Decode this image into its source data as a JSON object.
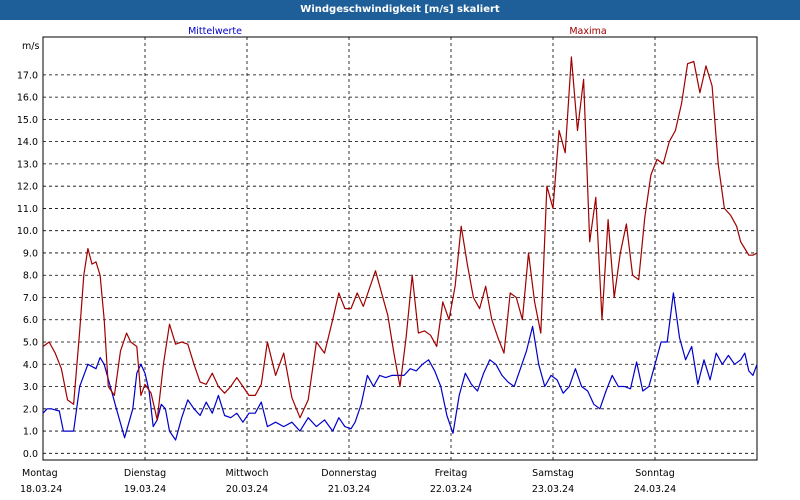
{
  "title": "Windgeschwindigkeit [m/s] skaliert",
  "chart_data": {
    "type": "line",
    "ylabel": "m/s",
    "ylim": [
      -0.3,
      18.7
    ],
    "yticks": [
      0.0,
      1.0,
      2.0,
      3.0,
      4.0,
      5.0,
      6.0,
      7.0,
      8.0,
      9.0,
      10.0,
      11.0,
      12.0,
      13.0,
      14.0,
      15.0,
      16.0,
      17.0
    ],
    "xlim": [
      0,
      7
    ],
    "days": [
      {
        "name": "Montag",
        "date": "18.03.24"
      },
      {
        "name": "Dienstag",
        "date": "19.03.24"
      },
      {
        "name": "Mittwoch",
        "date": "20.03.24"
      },
      {
        "name": "Donnerstag",
        "date": "21.03.24"
      },
      {
        "name": "Freitag",
        "date": "22.03.24"
      },
      {
        "name": "Samstag",
        "date": "23.03.24"
      },
      {
        "name": "Sonntag",
        "date": "24.03.24"
      }
    ],
    "series": [
      {
        "name": "Mittelwerte",
        "color": "#0000cc",
        "x": [
          0,
          0.04,
          0.08,
          0.16,
          0.2,
          0.24,
          0.3,
          0.36,
          0.44,
          0.52,
          0.56,
          0.6,
          0.66,
          0.72,
          0.8,
          0.88,
          0.92,
          0.96,
          1.0,
          1.04,
          1.08,
          1.12,
          1.16,
          1.2,
          1.24,
          1.3,
          1.36,
          1.42,
          1.48,
          1.54,
          1.6,
          1.66,
          1.72,
          1.78,
          1.84,
          1.9,
          1.96,
          2.02,
          2.08,
          2.14,
          2.2,
          2.28,
          2.36,
          2.44,
          2.52,
          2.6,
          2.68,
          2.76,
          2.84,
          2.9,
          2.96,
          3.02,
          3.06,
          3.12,
          3.18,
          3.24,
          3.3,
          3.36,
          3.42,
          3.48,
          3.54,
          3.6,
          3.66,
          3.72,
          3.78,
          3.84,
          3.9,
          3.96,
          4.02,
          4.08,
          4.14,
          4.2,
          4.26,
          4.32,
          4.38,
          4.44,
          4.5,
          4.56,
          4.62,
          4.68,
          4.74,
          4.8,
          4.86,
          4.92,
          4.98,
          5.04,
          5.1,
          5.16,
          5.22,
          5.28,
          5.34,
          5.4,
          5.46,
          5.52,
          5.58,
          5.64,
          5.7,
          5.76,
          5.82,
          5.88,
          5.94,
          6.0,
          6.06,
          6.12,
          6.18,
          6.24,
          6.3,
          6.36,
          6.42,
          6.48,
          6.54,
          6.6,
          6.66,
          6.72,
          6.78,
          6.84,
          6.88,
          6.92,
          6.96,
          7.0
        ],
        "y": [
          1.8,
          2.0,
          2.0,
          1.9,
          1.0,
          1.0,
          1.0,
          3.0,
          4.0,
          3.8,
          4.3,
          4.0,
          3.0,
          2.0,
          0.7,
          2.0,
          3.6,
          4.0,
          3.6,
          2.8,
          1.2,
          1.5,
          2.2,
          2.0,
          1.0,
          0.6,
          1.6,
          2.4,
          2.0,
          1.7,
          2.3,
          1.8,
          2.6,
          1.7,
          1.6,
          1.8,
          1.4,
          1.8,
          1.8,
          2.3,
          1.2,
          1.4,
          1.2,
          1.4,
          1.0,
          1.6,
          1.2,
          1.5,
          1.0,
          1.6,
          1.2,
          1.1,
          1.4,
          2.2,
          3.5,
          3.0,
          3.5,
          3.4,
          3.5,
          3.5,
          3.5,
          3.8,
          3.7,
          4.0,
          4.2,
          3.7,
          3.0,
          1.7,
          0.9,
          2.6,
          3.6,
          3.1,
          2.8,
          3.6,
          4.2,
          4.0,
          3.5,
          3.2,
          3.0,
          3.8,
          4.6,
          5.7,
          4.0,
          3.0,
          3.5,
          3.3,
          2.7,
          3.0,
          3.8,
          3.0,
          2.8,
          2.2,
          2.0,
          2.8,
          3.5,
          3.0,
          3.0,
          2.9,
          4.1,
          2.8,
          3.0,
          4.0,
          5.0,
          5.0,
          7.2,
          5.2,
          4.2,
          4.8,
          3.1,
          4.2,
          3.3,
          4.5,
          4.0,
          4.4,
          4.0,
          4.2,
          4.5,
          3.7,
          3.5,
          4.0
        ],
        "note": "x in days from 18.03.24 00:00"
      },
      {
        "name": "Maxima",
        "color": "#a00000",
        "x": [
          0,
          0.06,
          0.12,
          0.18,
          0.24,
          0.3,
          0.36,
          0.4,
          0.44,
          0.48,
          0.52,
          0.56,
          0.6,
          0.64,
          0.7,
          0.76,
          0.82,
          0.86,
          0.92,
          0.96,
          1.0,
          1.06,
          1.12,
          1.18,
          1.24,
          1.3,
          1.36,
          1.42,
          1.48,
          1.54,
          1.6,
          1.66,
          1.72,
          1.78,
          1.84,
          1.9,
          1.96,
          2.02,
          2.08,
          2.14,
          2.2,
          2.28,
          2.36,
          2.44,
          2.52,
          2.6,
          2.68,
          2.76,
          2.84,
          2.9,
          2.96,
          3.02,
          3.08,
          3.14,
          3.2,
          3.26,
          3.32,
          3.38,
          3.44,
          3.5,
          3.56,
          3.62,
          3.68,
          3.74,
          3.8,
          3.86,
          3.92,
          3.98,
          4.04,
          4.1,
          4.16,
          4.22,
          4.28,
          4.34,
          4.4,
          4.46,
          4.52,
          4.58,
          4.64,
          4.7,
          4.76,
          4.82,
          4.88,
          4.94,
          5.0,
          5.06,
          5.12,
          5.18,
          5.24,
          5.3,
          5.36,
          5.42,
          5.48,
          5.54,
          5.6,
          5.66,
          5.72,
          5.78,
          5.84,
          5.9,
          5.96,
          6.02,
          6.08,
          6.14,
          6.2,
          6.26,
          6.32,
          6.38,
          6.44,
          6.5,
          6.56,
          6.62,
          6.68,
          6.74,
          6.8,
          6.84,
          6.88,
          6.92,
          6.96,
          7.0
        ],
        "y": [
          4.8,
          5.0,
          4.5,
          3.8,
          2.4,
          2.2,
          5.5,
          8.0,
          9.2,
          8.5,
          8.6,
          8.0,
          6.0,
          3.0,
          2.6,
          4.6,
          5.4,
          5.0,
          4.8,
          2.6,
          3.1,
          2.7,
          1.5,
          4.0,
          5.8,
          4.9,
          5.0,
          4.9,
          4.0,
          3.2,
          3.1,
          3.6,
          3.0,
          2.7,
          3.0,
          3.4,
          3.0,
          2.6,
          2.6,
          3.1,
          5.0,
          3.5,
          4.5,
          2.5,
          1.6,
          2.4,
          5.0,
          4.5,
          6.0,
          7.2,
          6.5,
          6.5,
          7.2,
          6.6,
          7.4,
          8.2,
          7.2,
          6.2,
          4.5,
          3.0,
          5.2,
          8.0,
          5.4,
          5.5,
          5.3,
          4.8,
          6.8,
          6.0,
          7.5,
          10.2,
          8.5,
          7.0,
          6.5,
          7.5,
          6.0,
          5.2,
          4.5,
          7.2,
          7.0,
          6.0,
          9.0,
          6.8,
          5.4,
          12.0,
          11.0,
          14.5,
          13.5,
          17.8,
          14.5,
          16.8,
          9.5,
          11.5,
          6.0,
          10.5,
          7.0,
          9.0,
          10.3,
          8.0,
          7.8,
          10.6,
          12.5,
          13.2,
          13.0,
          14.0,
          14.5,
          15.7,
          17.5,
          17.6,
          16.2,
          17.4,
          16.5,
          13.0,
          11.0,
          10.7,
          10.2,
          9.5,
          9.2,
          8.9,
          8.9,
          9.0
        ],
        "note": "x in days from 18.03.24 00:00"
      }
    ],
    "grid": true,
    "legend": "top, labels above plot"
  }
}
